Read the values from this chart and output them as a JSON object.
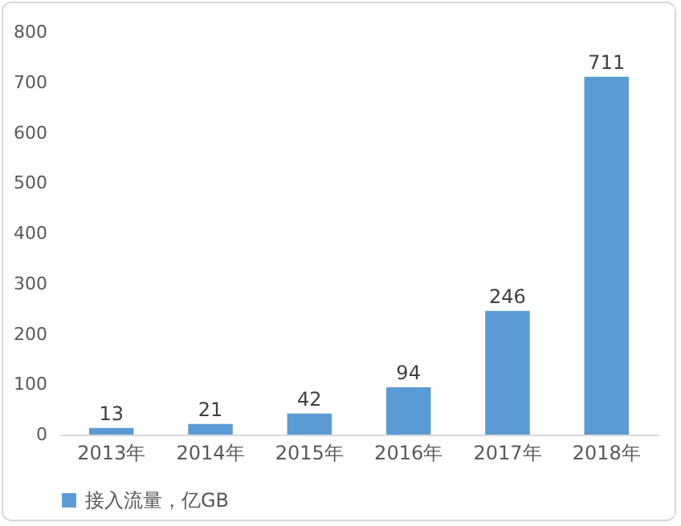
{
  "chart_data": {
    "type": "bar",
    "categories": [
      "2013年",
      "2014年",
      "2015年",
      "2016年",
      "2017年",
      "2018年"
    ],
    "series": [
      {
        "name": "接入流量，亿GB",
        "color": "#5b9bd5",
        "values": [
          13,
          21,
          42,
          94,
          246,
          711
        ]
      }
    ],
    "ylim": [
      0,
      800
    ],
    "yticks": [
      0,
      100,
      200,
      300,
      400,
      500,
      600,
      700,
      800
    ],
    "grid": false,
    "legend": "bottom",
    "data_labels": true
  }
}
